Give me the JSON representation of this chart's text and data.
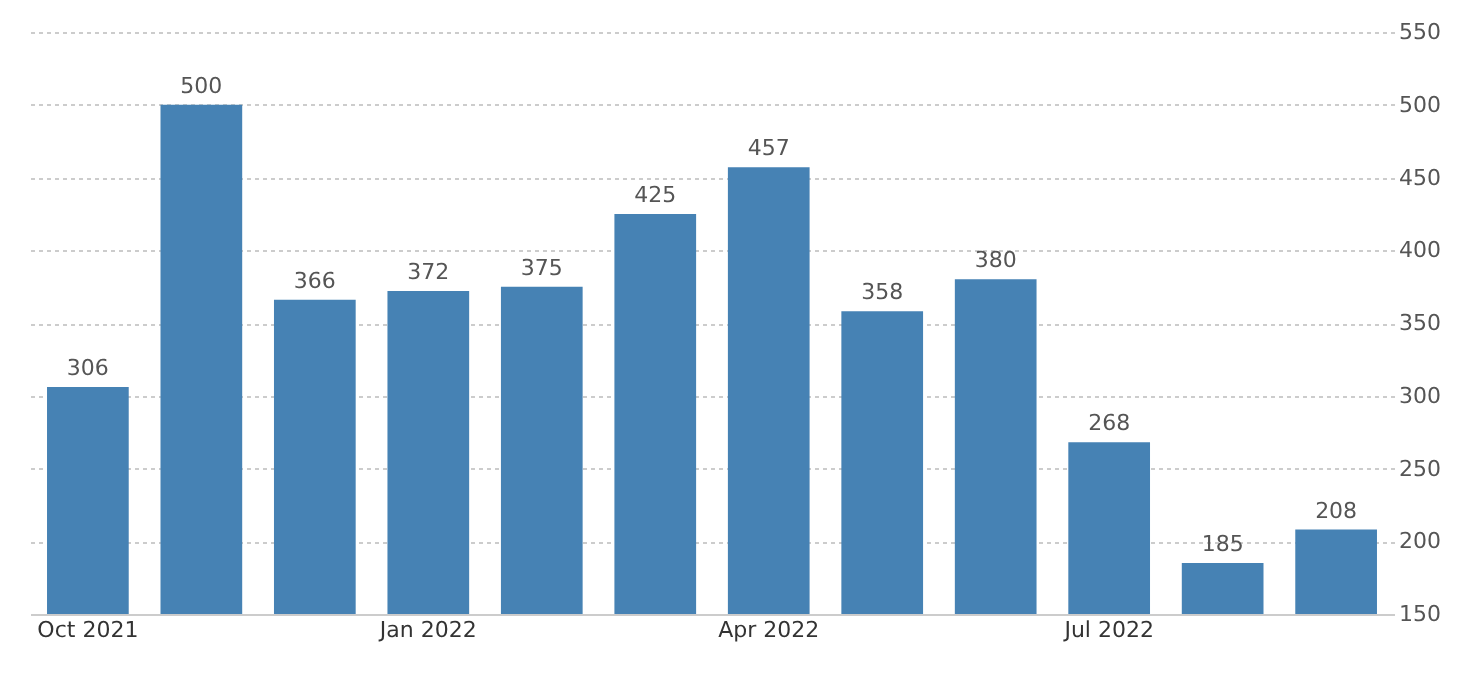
{
  "chart_data": {
    "type": "bar",
    "categories": [
      "Oct 2021",
      null,
      null,
      "Jan 2022",
      null,
      null,
      "Apr 2022",
      null,
      null,
      "Jul 2022",
      null,
      null
    ],
    "values": [
      306,
      500,
      366,
      372,
      375,
      425,
      457,
      358,
      380,
      268,
      185,
      208
    ],
    "color": "#4682b4",
    "ylim": [
      150,
      550
    ],
    "yticks": [
      150,
      200,
      250,
      300,
      350,
      400,
      450,
      500,
      550
    ],
    "grid": "y",
    "data_labels": true
  }
}
